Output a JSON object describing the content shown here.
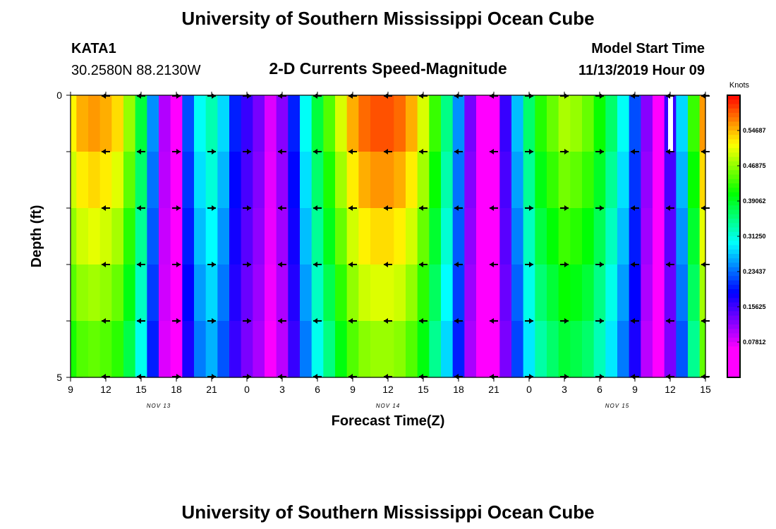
{
  "header": {
    "title": "University of Southern Mississippi Ocean Cube",
    "station": "KATA1",
    "coords": "30.2580N 88.2130W",
    "subtitle": "2-D Currents Speed-Magnitude",
    "model_label": "Model Start Time",
    "model_time": "11/13/2019 Hour 09"
  },
  "footer": {
    "title": "University of Southern Mississippi Ocean Cube"
  },
  "chart_data": {
    "type": "heatmap",
    "title": "2-D Currents Speed-Magnitude",
    "xlabel": "Forecast Time(Z)",
    "ylabel": "Depth (ft)",
    "x_hours": [
      9,
      10,
      11,
      12,
      13,
      14,
      15,
      16,
      17,
      18,
      19,
      20,
      21,
      22,
      23,
      24,
      25,
      26,
      27,
      28,
      29,
      30,
      31,
      32,
      33,
      34,
      35,
      36,
      37,
      38,
      39,
      40,
      41,
      42,
      43,
      44,
      45,
      46,
      47,
      48,
      49,
      50,
      51,
      52,
      53,
      54,
      55,
      56,
      57,
      58,
      59,
      60,
      61,
      62,
      63,
      64,
      65,
      66
    ],
    "xlim": [
      9,
      63
    ],
    "ylim": [
      0,
      5
    ],
    "x_tick_labels": [
      "9",
      "12",
      "15",
      "18",
      "21",
      "0",
      "3",
      "6",
      "9",
      "12",
      "15",
      "18",
      "21",
      "0",
      "3",
      "6",
      "9",
      "12",
      "15"
    ],
    "y_tick_labels": [
      "0",
      "5"
    ],
    "date_labels": [
      "NOV 13",
      "NOV 14",
      "NOV 15"
    ],
    "speed_knots_surface": [
      0.52,
      0.55,
      0.56,
      0.55,
      0.53,
      0.47,
      0.38,
      0.25,
      0.1,
      0.06,
      0.22,
      0.3,
      0.33,
      0.28,
      0.2,
      0.16,
      0.13,
      0.08,
      0.12,
      0.2,
      0.3,
      0.38,
      0.44,
      0.5,
      0.55,
      0.58,
      0.59,
      0.59,
      0.58,
      0.55,
      0.5,
      0.43,
      0.35,
      0.25,
      0.13,
      0.06,
      0.06,
      0.16,
      0.27,
      0.36,
      0.42,
      0.45,
      0.48,
      0.47,
      0.45,
      0.41,
      0.36,
      0.3,
      0.22,
      0.12,
      0.06,
      0.16,
      0.28,
      0.43,
      0.56,
      0.58,
      0.57,
      0.56
    ],
    "arrow_hours": [
      12,
      15,
      18,
      21,
      24,
      27,
      30,
      33,
      36,
      39,
      42,
      45,
      48,
      51,
      54,
      57,
      60,
      63
    ],
    "arrow_dirs": [
      "W",
      "W",
      "E",
      "E",
      "E",
      "W",
      "W",
      "W",
      "W",
      "W",
      "W",
      "W",
      "E",
      "E",
      "E",
      "W",
      "W",
      "W"
    ],
    "colorbar": {
      "title": "Knots",
      "ticks": [
        "0.54687",
        "0.46875",
        "0.39062",
        "0.31250",
        "0.23437",
        "0.15625",
        "0.07812"
      ],
      "range": [
        0,
        0.625
      ]
    }
  }
}
